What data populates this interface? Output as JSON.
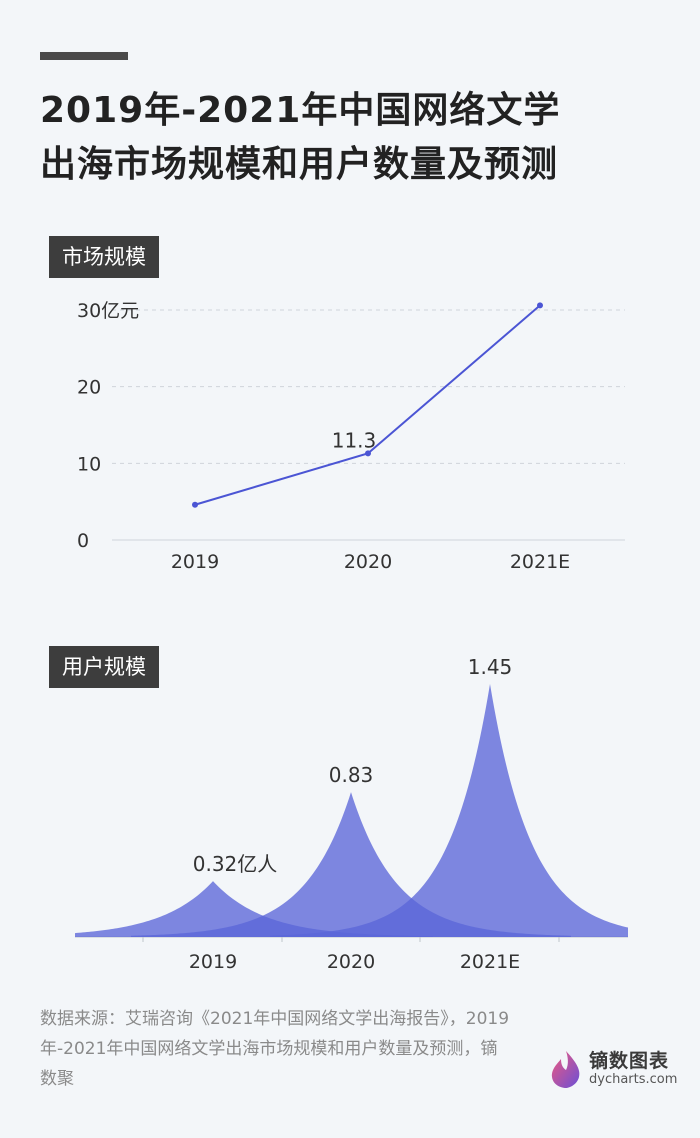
{
  "title_lines": [
    "2019年-2021年中国网络文学",
    "出海市场规模和用户数量及预测"
  ],
  "colors": {
    "line": "#4b55d4",
    "area": "#5b66d8",
    "grid": "#cfd4da",
    "axis_text": "#333333"
  },
  "chart_data": [
    {
      "type": "line",
      "section_label": "市场规模",
      "categories": [
        "2019",
        "2020",
        "2021E"
      ],
      "values": [
        4.6,
        11.3,
        30.6
      ],
      "unit": "亿元",
      "yticks": [
        0,
        10,
        20,
        "30亿元"
      ],
      "ylim": [
        0,
        30
      ],
      "data_labels": [
        {
          "index": 1,
          "text": "11.3"
        }
      ],
      "grid": true
    },
    {
      "type": "area",
      "section_label": "用户规模",
      "categories": [
        "2019",
        "2020",
        "2021E"
      ],
      "values": [
        0.32,
        0.83,
        1.45
      ],
      "unit": "亿人",
      "data_labels": [
        "0.32亿人",
        "0.83",
        "1.45"
      ],
      "ylim": [
        0,
        1.45
      ]
    }
  ],
  "source": "数据来源：艾瑞咨询《2021年中国网络文学出海报告》，2019年-2021年中国网络文学出海市场规模和用户数量及预测，镝数聚",
  "brand": {
    "name": "镝数图表",
    "url": "dycharts.com",
    "icon": "flame-icon"
  }
}
